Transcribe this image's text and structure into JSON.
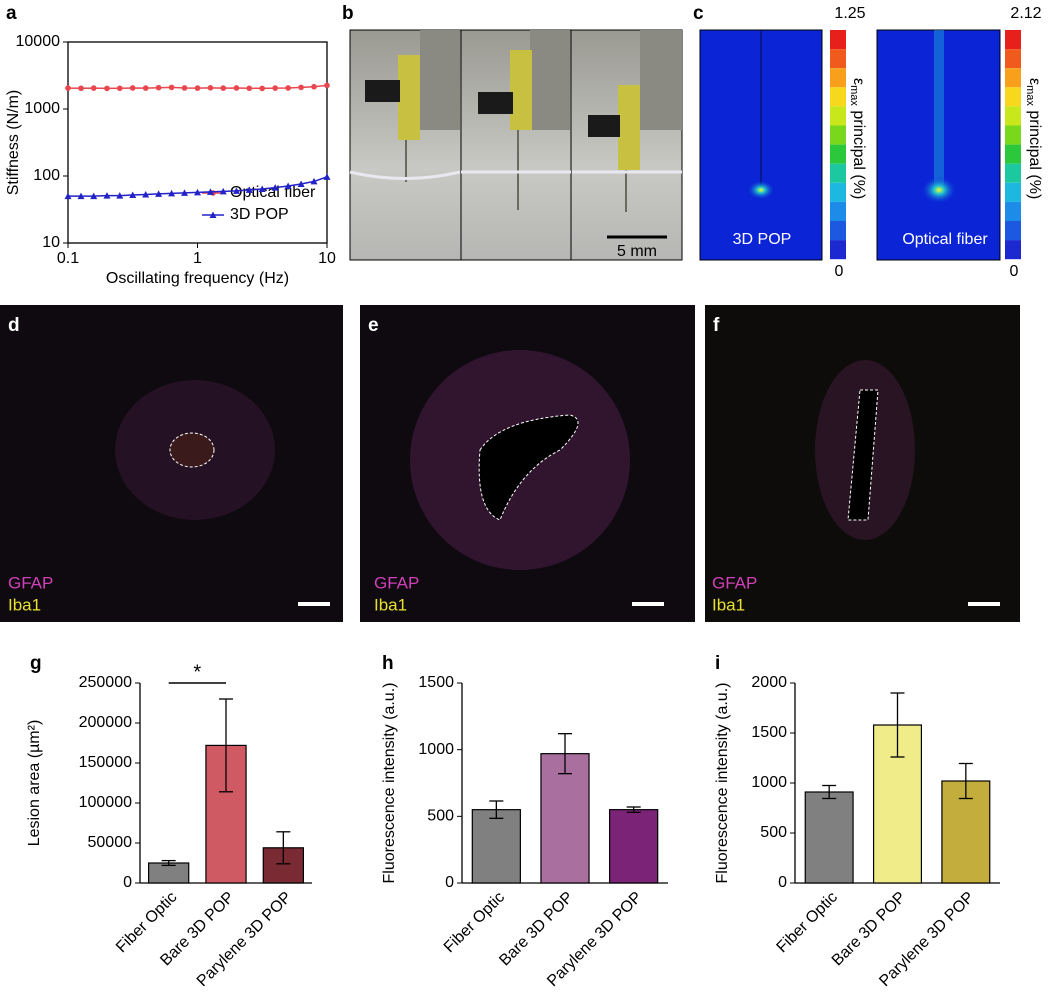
{
  "chart_data": [
    {
      "type": "line",
      "panel": "a",
      "xlabel": "Oscillating frequency (Hz)",
      "ylabel": "Stiffness (N/m)",
      "xscale": "log",
      "yscale": "log",
      "xlim": [
        0.1,
        10
      ],
      "ylim": [
        10,
        10000
      ],
      "xticks": [
        0.1,
        1,
        10
      ],
      "yticks": [
        10,
        100,
        1000,
        10000
      ],
      "legend": "lower right",
      "x": [
        0.1,
        0.126,
        0.158,
        0.2,
        0.251,
        0.316,
        0.398,
        0.501,
        0.631,
        0.794,
        1,
        1.26,
        1.58,
        2,
        2.51,
        3.16,
        3.98,
        5.01,
        6.31,
        7.94,
        10
      ],
      "series": [
        {
          "name": "Optical fiber",
          "color": "#e8474f",
          "marker": "circle",
          "values": [
            2050,
            2040,
            2050,
            2030,
            2040,
            2060,
            2050,
            2080,
            2100,
            2060,
            2050,
            2070,
            2050,
            2060,
            2040,
            2030,
            2050,
            2060,
            2100,
            2150,
            2250
          ]
        },
        {
          "name": "3D POP",
          "color": "#2323c8",
          "marker": "triangle",
          "values": [
            50,
            50,
            50,
            51,
            51,
            52,
            53,
            54,
            55,
            56,
            57,
            58,
            59,
            60,
            62,
            64,
            67,
            71,
            76,
            83,
            97
          ]
        }
      ]
    },
    {
      "type": "bar",
      "panel": "g",
      "ylabel": "Lesion area (µm²)",
      "significance": "*",
      "categories": [
        "Fiber Optic",
        "Bare 3D POP",
        "Parylene 3D POP"
      ],
      "values": [
        25000,
        172000,
        44000
      ],
      "errors": [
        3000,
        58000,
        20000
      ],
      "colors": [
        "#808080",
        "#d05a64",
        "#7a2a32"
      ],
      "ylim": [
        0,
        250000
      ],
      "yticks": [
        0,
        50000,
        100000,
        150000,
        200000,
        250000
      ]
    },
    {
      "type": "bar",
      "panel": "h",
      "ylabel": "Fluorescence intensity (a.u.)",
      "categories": [
        "Fiber Optic",
        "Bare 3D POP",
        "Parylene 3D POP"
      ],
      "values": [
        550,
        970,
        550
      ],
      "errors": [
        65,
        150,
        20
      ],
      "colors": [
        "#808080",
        "#a9709f",
        "#7b2477"
      ],
      "ylim": [
        0,
        1500
      ],
      "yticks": [
        0,
        500,
        1000,
        1500
      ]
    },
    {
      "type": "bar",
      "panel": "i",
      "ylabel": "Fluorescence intensity (a.u.)",
      "categories": [
        "Fiber Optic",
        "Bare 3D POP",
        "Parylene 3D POP"
      ],
      "values": [
        910,
        1580,
        1020
      ],
      "errors": [
        65,
        320,
        175
      ],
      "colors": [
        "#808080",
        "#f0ec8a",
        "#c2ad3d"
      ],
      "ylim": [
        0,
        2000
      ],
      "yticks": [
        0,
        500,
        1000,
        1500,
        2000
      ]
    }
  ],
  "panels": {
    "b": {
      "label": "b",
      "scale_bar": "5 mm"
    },
    "c": {
      "label": "c",
      "colorbar_symbol": "ε",
      "colorbar_subscript": "max",
      "colorbar_text": " principal (%)",
      "left": {
        "name": "3D POP",
        "max": "1.25",
        "min": "0"
      },
      "right": {
        "name": "Optical fiber",
        "max": "2.12",
        "min": "0"
      }
    },
    "d": {
      "label": "d",
      "stain1": "GFAP",
      "stain2": "Iba1"
    },
    "e": {
      "label": "e",
      "stain1": "GFAP",
      "stain2": "Iba1"
    },
    "f": {
      "label": "f",
      "stain1": "GFAP",
      "stain2": "Iba1"
    }
  }
}
